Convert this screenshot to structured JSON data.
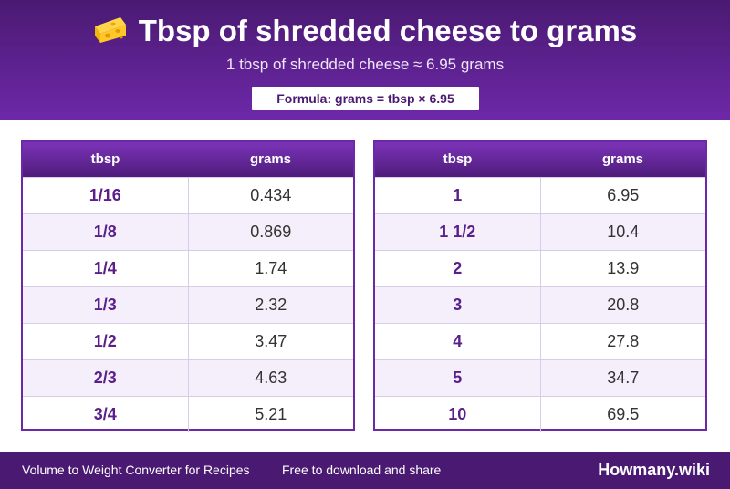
{
  "header": {
    "icon": "cheese-icon",
    "title": "Tbsp of shredded cheese to grams",
    "subtitle": "1 tbsp of shredded cheese ≈ 6.95 grams",
    "formula": "Formula: grams = tbsp × 6.95"
  },
  "tables": [
    {
      "columns": [
        "tbsp",
        "grams"
      ],
      "rows": [
        [
          "1/16",
          "0.434"
        ],
        [
          "1/8",
          "0.869"
        ],
        [
          "1/4",
          "1.74"
        ],
        [
          "1/3",
          "2.32"
        ],
        [
          "1/2",
          "3.47"
        ],
        [
          "2/3",
          "4.63"
        ],
        [
          "3/4",
          "5.21"
        ]
      ]
    },
    {
      "columns": [
        "tbsp",
        "grams"
      ],
      "rows": [
        [
          "1",
          "6.95"
        ],
        [
          "1 1/2",
          "10.4"
        ],
        [
          "2",
          "13.9"
        ],
        [
          "3",
          "20.8"
        ],
        [
          "4",
          "27.8"
        ],
        [
          "5",
          "34.7"
        ],
        [
          "10",
          "69.5"
        ]
      ]
    }
  ],
  "footer": {
    "left_text": "Volume to Weight Converter for Recipes",
    "middle_text": "Free to download and share",
    "brand": "Howmany.wiki"
  },
  "colors": {
    "header_bg": "#4a1a72",
    "accent": "#6d28a8",
    "row_alt": "#f4effa"
  }
}
